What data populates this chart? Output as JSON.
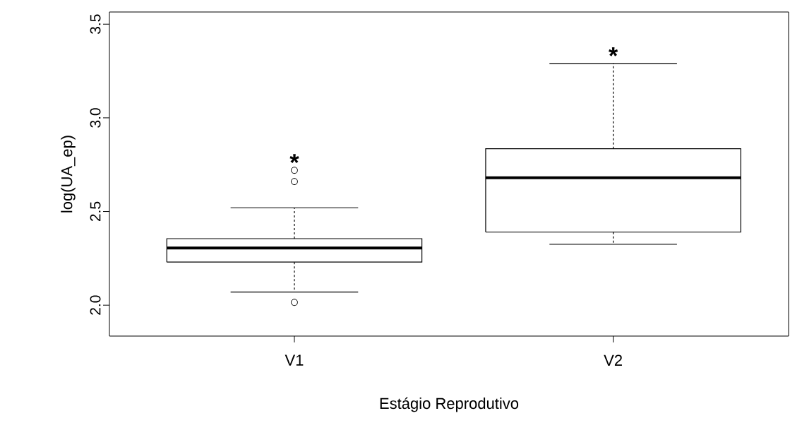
{
  "chart_data": {
    "type": "box",
    "categories": [
      "V1",
      "V2"
    ],
    "boxes": [
      {
        "low": 2.07,
        "q1": 2.23,
        "median": 2.305,
        "q3": 2.355,
        "high": 2.52,
        "outliers": [
          2.015,
          2.66,
          2.72
        ]
      },
      {
        "low": 2.325,
        "q1": 2.39,
        "median": 2.68,
        "q3": 2.835,
        "high": 3.29
      }
    ],
    "xlabel": "Estágio Reprodutivo",
    "ylabel": "log(UA_ep)",
    "ylim": [
      1.835,
      3.565
    ],
    "yticks": [
      {
        "value": 2,
        "label": "2.0"
      },
      2.5,
      {
        "value": 3,
        "label": "3.0"
      },
      3.5
    ],
    "annotations": [
      "*",
      "*"
    ]
  }
}
